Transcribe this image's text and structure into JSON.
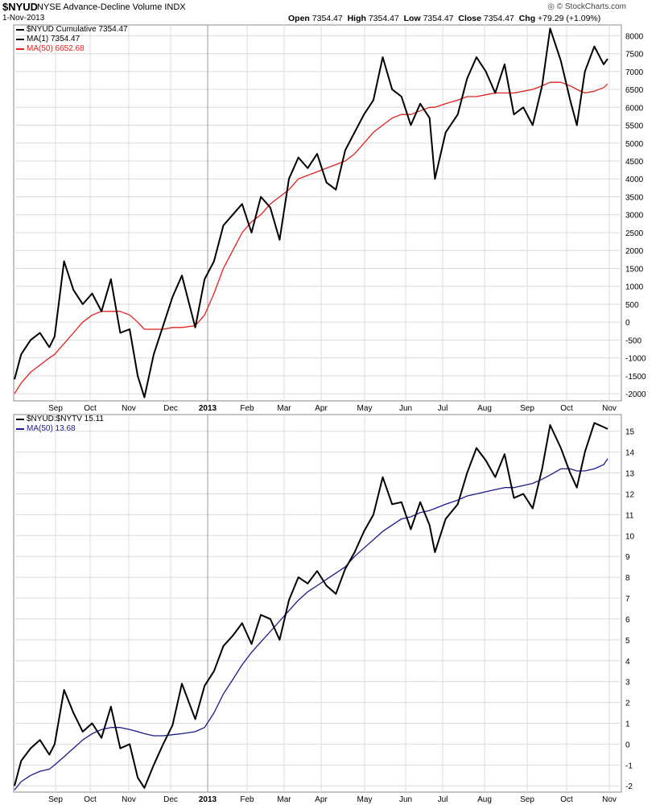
{
  "header": {
    "symbol": "$NYUD",
    "description": "NYSE Advance-Decline Volume INDX",
    "date": "1-Nov-2013",
    "open_label": "Open",
    "open": "7354.47",
    "high_label": "High",
    "high": "7354.47",
    "low_label": "Low",
    "low": "7354.47",
    "close_label": "Close",
    "close": "7354.47",
    "chg_label": "Chg",
    "chg": "+79.29 (+1.09%)",
    "credit": "© StockCharts.com",
    "credit_icon": "stockcharts-logo-icon"
  },
  "colors": {
    "price": "#000000",
    "ma50_top": "#e0201c",
    "ma50_bottom": "#1a1a8c",
    "grid": "#dcdcdc",
    "year_line": "#9a9a9a"
  },
  "chart_data": [
    {
      "type": "line",
      "title": "$NYUD Cumulative",
      "legend": [
        {
          "label": "$NYUD  Cumulative 7354.47",
          "color": "#000000"
        },
        {
          "label": "MA(1) 7354.47",
          "color": "#000000"
        },
        {
          "label": "MA(50) 6652.68",
          "color": "#e0201c"
        }
      ],
      "ylim": [
        -2200,
        8300
      ],
      "yticks": [
        -2000,
        -1500,
        -1000,
        -500,
        0,
        500,
        1000,
        1500,
        2000,
        2500,
        3000,
        3500,
        4000,
        4500,
        5000,
        5500,
        6000,
        6500,
        7000,
        7500,
        8000
      ],
      "x_ticks": [
        "Sep",
        "Oct",
        "Nov",
        "Dec",
        "2013",
        "Feb",
        "Mar",
        "Apr",
        "May",
        "Jun",
        "Jul",
        "Aug",
        "Sep",
        "Oct",
        "Nov"
      ],
      "x": [
        "2012-08-15",
        "2012-08-20",
        "2012-08-27",
        "2012-09-03",
        "2012-09-10",
        "2012-09-14",
        "2012-09-21",
        "2012-09-28",
        "2012-10-05",
        "2012-10-12",
        "2012-10-19",
        "2012-10-26",
        "2012-11-02",
        "2012-11-09",
        "2012-11-15",
        "2012-11-20",
        "2012-11-27",
        "2012-12-04",
        "2012-12-11",
        "2012-12-18",
        "2012-12-28",
        "2013-01-04",
        "2013-01-11",
        "2013-01-18",
        "2013-01-25",
        "2013-02-01",
        "2013-02-08",
        "2013-02-15",
        "2013-02-22",
        "2013-03-01",
        "2013-03-08",
        "2013-03-15",
        "2013-03-22",
        "2013-03-29",
        "2013-04-05",
        "2013-04-12",
        "2013-04-19",
        "2013-04-26",
        "2013-05-03",
        "2013-05-10",
        "2013-05-17",
        "2013-05-24",
        "2013-05-31",
        "2013-06-07",
        "2013-06-14",
        "2013-06-21",
        "2013-06-25",
        "2013-07-03",
        "2013-07-12",
        "2013-07-19",
        "2013-07-26",
        "2013-08-02",
        "2013-08-09",
        "2013-08-16",
        "2013-08-23",
        "2013-08-30",
        "2013-09-06",
        "2013-09-13",
        "2013-09-19",
        "2013-09-27",
        "2013-10-04",
        "2013-10-09",
        "2013-10-15",
        "2013-10-22",
        "2013-10-29",
        "2013-11-01"
      ],
      "series": [
        {
          "name": "$NYUD",
          "color": "#000000",
          "values": [
            -1600,
            -900,
            -500,
            -300,
            -700,
            -400,
            1700,
            900,
            500,
            800,
            300,
            1200,
            -300,
            -200,
            -1500,
            -2100,
            -900,
            -100,
            700,
            1300,
            -150,
            1200,
            1700,
            2700,
            3000,
            3300,
            2500,
            3500,
            3200,
            2300,
            4000,
            4600,
            4300,
            4700,
            3900,
            3700,
            4800,
            5300,
            5800,
            6200,
            7400,
            6500,
            6300,
            5500,
            6100,
            5700,
            4000,
            5300,
            5800,
            6800,
            7400,
            7000,
            6400,
            7200,
            5800,
            6000,
            5500,
            6600,
            8200,
            7300,
            6200,
            5500,
            7000,
            7700,
            7200,
            7354
          ]
        },
        {
          "name": "MA(50)",
          "color": "#e0201c",
          "values": [
            -2000,
            -1700,
            -1400,
            -1200,
            -1000,
            -900,
            -600,
            -300,
            0,
            200,
            300,
            300,
            300,
            200,
            0,
            -200,
            -200,
            -200,
            -150,
            -150,
            -100,
            200,
            800,
            1500,
            2000,
            2500,
            2800,
            3000,
            3300,
            3500,
            3700,
            4000,
            4100,
            4200,
            4300,
            4400,
            4500,
            4700,
            5000,
            5300,
            5500,
            5700,
            5800,
            5800,
            5900,
            6000,
            6000,
            6100,
            6200,
            6300,
            6300,
            6350,
            6400,
            6400,
            6400,
            6450,
            6500,
            6600,
            6700,
            6700,
            6600,
            6500,
            6400,
            6450,
            6550,
            6652
          ]
        }
      ]
    },
    {
      "type": "line",
      "title": "$NYUD:$NYTV",
      "legend": [
        {
          "label": "$NYUD:$NYTV  15.11",
          "color": "#000000"
        },
        {
          "label": "MA(50) 13.68",
          "color": "#1a1a8c"
        }
      ],
      "ylim": [
        -2.3,
        15.8
      ],
      "yticks": [
        -2,
        -1,
        0,
        1,
        2,
        3,
        4,
        5,
        6,
        7,
        8,
        9,
        10,
        11,
        12,
        13,
        14,
        15
      ],
      "x_ticks": [
        "Sep",
        "Oct",
        "Nov",
        "Dec",
        "2013",
        "Feb",
        "Mar",
        "Apr",
        "May",
        "Jun",
        "Jul",
        "Aug",
        "Sep",
        "Oct",
        "Nov"
      ],
      "x": [
        "2012-08-15",
        "2012-08-20",
        "2012-08-27",
        "2012-09-03",
        "2012-09-10",
        "2012-09-14",
        "2012-09-21",
        "2012-09-28",
        "2012-10-05",
        "2012-10-12",
        "2012-10-19",
        "2012-10-26",
        "2012-11-02",
        "2012-11-09",
        "2012-11-15",
        "2012-11-20",
        "2012-11-27",
        "2012-12-04",
        "2012-12-11",
        "2012-12-18",
        "2012-12-28",
        "2013-01-04",
        "2013-01-11",
        "2013-01-18",
        "2013-01-25",
        "2013-02-01",
        "2013-02-08",
        "2013-02-15",
        "2013-02-22",
        "2013-03-01",
        "2013-03-08",
        "2013-03-15",
        "2013-03-22",
        "2013-03-29",
        "2013-04-05",
        "2013-04-12",
        "2013-04-19",
        "2013-04-26",
        "2013-05-03",
        "2013-05-10",
        "2013-05-17",
        "2013-05-24",
        "2013-05-31",
        "2013-06-07",
        "2013-06-14",
        "2013-06-21",
        "2013-06-25",
        "2013-07-03",
        "2013-07-12",
        "2013-07-19",
        "2013-07-26",
        "2013-08-02",
        "2013-08-09",
        "2013-08-16",
        "2013-08-23",
        "2013-08-30",
        "2013-09-06",
        "2013-09-13",
        "2013-09-19",
        "2013-09-27",
        "2013-10-04",
        "2013-10-09",
        "2013-10-15",
        "2013-10-22",
        "2013-10-29",
        "2013-11-01"
      ],
      "series": [
        {
          "name": "$NYUD:$NYTV",
          "color": "#000000",
          "values": [
            -2.0,
            -0.8,
            -0.2,
            0.2,
            -0.5,
            0,
            2.6,
            1.5,
            0.6,
            1.0,
            0.3,
            1.8,
            -0.2,
            0,
            -1.6,
            -2.1,
            -1.0,
            0,
            0.9,
            2.9,
            1.2,
            2.8,
            3.5,
            4.7,
            5.2,
            5.8,
            4.8,
            6.2,
            6.0,
            5.0,
            6.9,
            8.0,
            7.7,
            8.3,
            7.6,
            7.2,
            8.4,
            9.2,
            10.2,
            11.0,
            12.8,
            11.5,
            11.6,
            10.3,
            11.6,
            10.5,
            9.2,
            10.8,
            11.5,
            13.0,
            14.2,
            13.6,
            12.8,
            13.9,
            11.8,
            12.0,
            11.3,
            13.2,
            15.3,
            14.2,
            13.0,
            12.3,
            14.0,
            15.4,
            15.2,
            15.11
          ]
        },
        {
          "name": "MA(50)",
          "color": "#1a1a8c",
          "values": [
            -2.2,
            -1.8,
            -1.5,
            -1.3,
            -1.2,
            -1.0,
            -0.6,
            -0.2,
            0.2,
            0.5,
            0.7,
            0.8,
            0.8,
            0.7,
            0.6,
            0.5,
            0.4,
            0.4,
            0.45,
            0.5,
            0.6,
            0.8,
            1.5,
            2.4,
            3.1,
            3.8,
            4.4,
            4.9,
            5.4,
            5.9,
            6.4,
            6.9,
            7.3,
            7.6,
            7.9,
            8.2,
            8.5,
            9.0,
            9.4,
            9.8,
            10.2,
            10.5,
            10.8,
            10.9,
            11.1,
            11.2,
            11.3,
            11.5,
            11.7,
            11.9,
            12.0,
            12.1,
            12.2,
            12.3,
            12.3,
            12.4,
            12.5,
            12.7,
            12.9,
            13.2,
            13.2,
            13.1,
            13.1,
            13.2,
            13.4,
            13.68
          ]
        }
      ]
    }
  ]
}
